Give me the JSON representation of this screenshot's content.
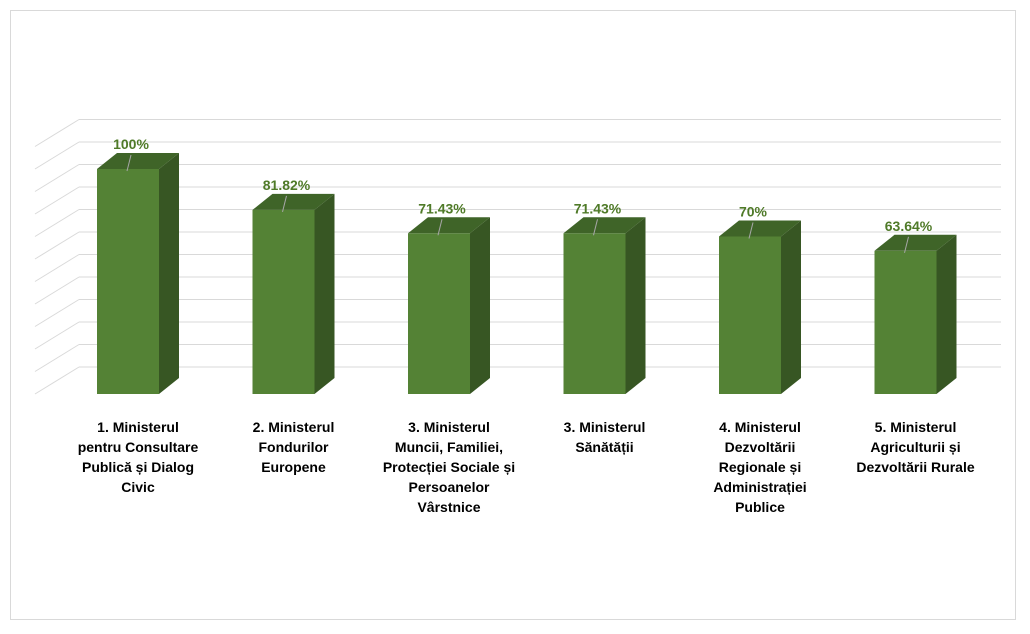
{
  "chart_data": {
    "type": "bar",
    "style": "3d-column",
    "categories": [
      "1.  Ministerul pentru Consultare Publică și Dialog Civic",
      "2.  Ministerul Fondurilor Europene",
      "3.   Ministerul Muncii, Familiei, Protecției Sociale și Persoanelor Vârstnice",
      "3. Ministerul Sănătății",
      "4.  Ministerul Dezvoltării Regionale și Administrației Publice",
      "5.  Ministerul Agriculturii și Dezvoltării Rurale"
    ],
    "category_lines": [
      [
        "1.  Ministerul",
        "pentru Consultare",
        "Publică și Dialog",
        "Civic"
      ],
      [
        "2.  Ministerul",
        "Fondurilor",
        "Europene"
      ],
      [
        "3.   Ministerul",
        "Muncii, Familiei,",
        "Protecției Sociale și",
        "Persoanelor",
        "Vârstnice"
      ],
      [
        "3. Ministerul",
        "Sănătății"
      ],
      [
        "4.  Ministerul",
        "Dezvoltării",
        "Regionale și",
        "Administrației",
        "Publice"
      ],
      [
        "5.  Ministerul",
        "Agriculturii și",
        "Dezvoltării Rurale"
      ]
    ],
    "values": [
      100,
      81.82,
      71.43,
      71.43,
      70,
      63.64
    ],
    "data_labels": [
      "100%",
      "81.82%",
      "71.43%",
      "71.43%",
      "70%",
      "63.64%"
    ],
    "ylim": [
      0,
      110
    ],
    "grid": true,
    "legend": "none",
    "title": "",
    "xlabel": "",
    "ylabel": "",
    "colors": {
      "bar_front": "#548235",
      "bar_side": "#375623",
      "bar_top": "#3f6428",
      "label": "#4f7a28",
      "grid": "#d9d9d9"
    }
  }
}
